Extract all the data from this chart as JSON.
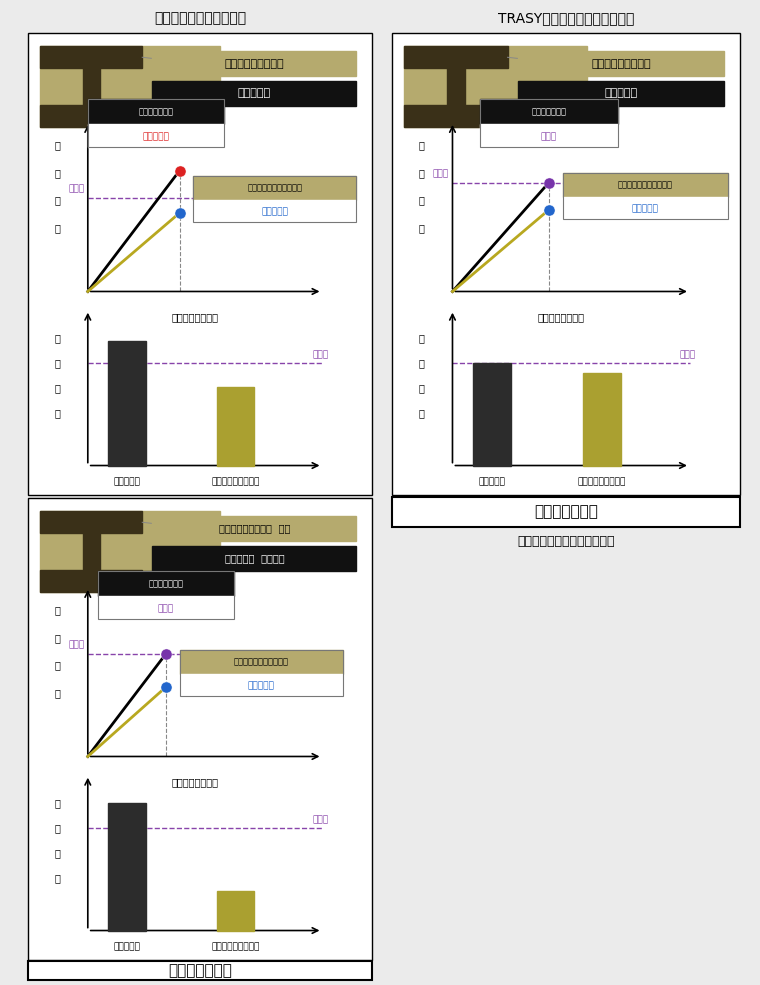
{
  "bg_color": "#ebebeb",
  "panel_bg": "#ffffff",
  "title1": "従来のトンネル支保設計",
  "title2": "TRASYによるトンネル支保設計",
  "title3": "支保工のサイズアップ",
  "label_shotcrete": "吹付けコンクリート",
  "label_steel": "鋼製支保工",
  "label_shotcrete_thick": "吹付けコンクリート  厚い",
  "label_steel_large": "鋼製支保工  サイズ大",
  "label_x_axis": "支保への作用土圧",
  "label_y_axis1": "支",
  "label_y_axis2": "保",
  "label_y_axis3": "応",
  "label_y_axis4": "力",
  "label_allowable": "許容値",
  "label_steel_stress_over": "許容値以上",
  "label_steel_stress_ok": "許容値",
  "label_concrete_stress_ok": "許容値以下",
  "label_steel_stress_label": "鋼製支保工応力",
  "label_concrete_stress_label": "吹付けコンクリート応力",
  "label_bar_x1": "鋼製支保工",
  "label_bar_x2": "吹付けコンクリート",
  "label_decision": "支保仕様の決定",
  "label_no_upsize": "支保工のサイズアップは不要",
  "color_shotcrete_bg": "#b5aa6e",
  "color_steel_bg": "#111111",
  "color_allowable_line": "#8844aa",
  "color_black_line": "#000000",
  "color_gold_line": "#b8a820",
  "color_dot_red": "#dd2222",
  "color_dot_blue": "#2266cc",
  "color_dot_purple": "#7733aa",
  "color_bar_steel": "#2c2c2c",
  "color_bar_concrete": "#aaa030",
  "color_ibeam": "#3a3018",
  "color_gray_dash": "#888888"
}
